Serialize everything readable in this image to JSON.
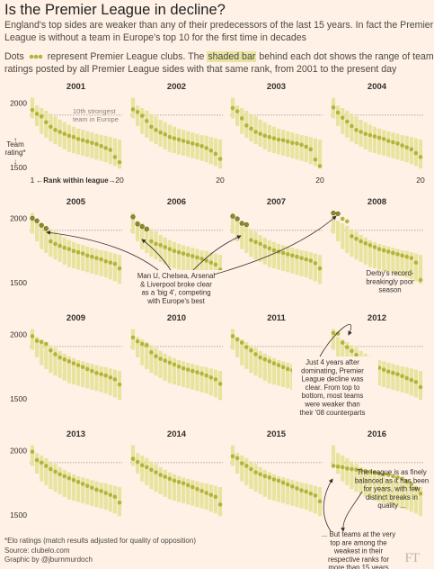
{
  "title": "Is the Premier League in decline?",
  "subtitle_line1": "England's top sides are weaker than any of their predecessors of the last 15 years. In fact the Premier",
  "subtitle_line2": "League is without a team in Europe's top 10 for the first time in decades",
  "note": {
    "prefix": "Dots",
    "middle": "represent Premier League clubs. The",
    "highlight": "shaded bar",
    "suffix_line1": "behind each dot shows the range of team",
    "line2": "ratings posted by all Premier League sides with that same rank, from 2001 to the present day"
  },
  "footer": {
    "line1": "*Elo ratings (match results adjusted for quality of opposition)",
    "line2": "Source: clubelo.com",
    "line3": "Graphic by @jburnmurdoch"
  },
  "logo": "FT",
  "colors": {
    "dot": "#b5b33a",
    "dot_highlight": "#8c8a2e",
    "bar": "#e8e4a0",
    "reference_line": "#9a928a",
    "text": "#33302e"
  },
  "chart_data": {
    "type": "scatter",
    "subtype": "small multiples, dot over range bar",
    "xlabel": "Rank within league",
    "ylabel": "Team rating*",
    "x_ticks": [
      "1",
      "20"
    ],
    "y_ticks": [
      "2000",
      "1500"
    ],
    "ylim": [
      1450,
      2100
    ],
    "xlim": [
      1,
      20
    ],
    "reference_line": {
      "label": "10th strongest team in Europe",
      "value": 1905
    },
    "range_bar": {
      "rank": [
        1,
        2,
        3,
        4,
        5,
        6,
        7,
        8,
        9,
        10,
        11,
        12,
        13,
        14,
        15,
        16,
        17,
        18,
        19,
        20
      ],
      "low": [
        1880,
        1820,
        1760,
        1730,
        1700,
        1680,
        1660,
        1640,
        1620,
        1610,
        1600,
        1590,
        1580,
        1570,
        1560,
        1550,
        1540,
        1525,
        1510,
        1490
      ],
      "high": [
        2040,
        1980,
        1960,
        1940,
        1915,
        1895,
        1870,
        1850,
        1830,
        1815,
        1800,
        1790,
        1780,
        1770,
        1760,
        1750,
        1745,
        1735,
        1725,
        1715
      ]
    },
    "panels": [
      {
        "year": "2001",
        "values": [
          1945,
          1915,
          1895,
          1850,
          1815,
          1790,
          1775,
          1760,
          1745,
          1735,
          1720,
          1710,
          1700,
          1690,
          1680,
          1665,
          1650,
          1635,
          1580,
          1540
        ]
      },
      {
        "year": "2002",
        "values": [
          1950,
          1930,
          1900,
          1860,
          1815,
          1790,
          1770,
          1755,
          1735,
          1725,
          1715,
          1705,
          1695,
          1685,
          1675,
          1665,
          1650,
          1630,
          1605,
          1565
        ]
      },
      {
        "year": "2003",
        "values": [
          1960,
          1935,
          1880,
          1825,
          1800,
          1775,
          1760,
          1745,
          1735,
          1725,
          1715,
          1710,
          1700,
          1690,
          1685,
          1675,
          1660,
          1640,
          1560,
          1510
        ]
      },
      {
        "year": "2004",
        "values": [
          1965,
          1925,
          1885,
          1855,
          1820,
          1790,
          1775,
          1760,
          1750,
          1740,
          1730,
          1720,
          1705,
          1695,
          1685,
          1670,
          1655,
          1640,
          1610,
          1580
        ]
      },
      {
        "year": "2005",
        "values": [
          2000,
          1980,
          1945,
          1920,
          1820,
          1800,
          1785,
          1770,
          1760,
          1745,
          1735,
          1725,
          1710,
          1700,
          1690,
          1680,
          1665,
          1655,
          1645,
          1610
        ]
      },
      {
        "year": "2006",
        "values": [
          2010,
          1955,
          1935,
          1915,
          1820,
          1800,
          1790,
          1775,
          1760,
          1745,
          1735,
          1725,
          1715,
          1705,
          1695,
          1685,
          1670,
          1655,
          1640,
          1600
        ]
      },
      {
        "year": "2007",
        "values": [
          2015,
          1995,
          1960,
          1950,
          1830,
          1815,
          1800,
          1780,
          1765,
          1750,
          1740,
          1730,
          1720,
          1710,
          1700,
          1690,
          1680,
          1670,
          1650,
          1610
        ]
      },
      {
        "year": "2008",
        "values": [
          2040,
          2035,
          1995,
          1975,
          1860,
          1840,
          1820,
          1805,
          1790,
          1775,
          1760,
          1750,
          1740,
          1730,
          1720,
          1710,
          1700,
          1690,
          1655,
          1520
        ]
      },
      {
        "year": "2009",
        "values": [
          1985,
          1950,
          1940,
          1925,
          1875,
          1845,
          1820,
          1805,
          1790,
          1775,
          1760,
          1745,
          1730,
          1715,
          1700,
          1690,
          1680,
          1665,
          1650,
          1610
        ]
      },
      {
        "year": "2010",
        "values": [
          1975,
          1945,
          1925,
          1915,
          1860,
          1830,
          1810,
          1795,
          1780,
          1765,
          1750,
          1735,
          1725,
          1715,
          1705,
          1695,
          1680,
          1665,
          1650,
          1615
        ]
      },
      {
        "year": "2011",
        "values": [
          1985,
          1960,
          1935,
          1900,
          1875,
          1845,
          1820,
          1805,
          1790,
          1775,
          1760,
          1745,
          1730,
          1720,
          1710,
          1700,
          1690,
          1675,
          1660,
          1635
        ]
      },
      {
        "year": "2012",
        "values": [
          2010,
          2005,
          1935,
          1900,
          1870,
          1840,
          1810,
          1790,
          1770,
          1755,
          1740,
          1725,
          1710,
          1700,
          1690,
          1675,
          1660,
          1645,
          1630,
          1590
        ]
      },
      {
        "year": "2013",
        "values": [
          1990,
          1925,
          1905,
          1880,
          1855,
          1835,
          1815,
          1800,
          1785,
          1770,
          1755,
          1740,
          1725,
          1710,
          1695,
          1685,
          1670,
          1655,
          1640,
          1595
        ]
      },
      {
        "year": "2014",
        "values": [
          1935,
          1910,
          1885,
          1870,
          1850,
          1830,
          1810,
          1795,
          1780,
          1765,
          1755,
          1745,
          1730,
          1715,
          1700,
          1685,
          1670,
          1655,
          1640,
          1580
        ]
      },
      {
        "year": "2015",
        "values": [
          1955,
          1940,
          1900,
          1880,
          1855,
          1830,
          1815,
          1800,
          1790,
          1775,
          1765,
          1750,
          1735,
          1720,
          1705,
          1690,
          1680,
          1665,
          1650,
          1605
        ]
      },
      {
        "year": "2016",
        "values": [
          1880,
          1875,
          1870,
          1860,
          1855,
          1850,
          1845,
          1840,
          1835,
          1830,
          1820,
          1815,
          1810,
          1800,
          1790,
          1780,
          1760,
          1740,
          1705,
          1665
        ]
      }
    ],
    "annotations": [
      {
        "panel": "2005",
        "lines": [
          "Man U, Chelsea, Arsenal",
          "& Liverpool broke clear",
          "as a 'big 4', competing",
          "with Europe's best"
        ]
      },
      {
        "panel": "2008",
        "lines": [
          "Derby's record-",
          "breakingly poor",
          "season"
        ]
      },
      {
        "panel": "2012",
        "lines": [
          "Just 4 years after",
          "dominating, Premier",
          "League decline was",
          "clear. From top to",
          "bottom, most teams",
          "were weaker than",
          "their '08 counterparts"
        ]
      },
      {
        "panel": "2016",
        "lines": [
          "The league is as finely",
          "balanced as it has been",
          "for years, with few",
          "distinct breaks in",
          "quality ..."
        ]
      },
      {
        "panel": "2016",
        "lines": [
          "... But teams at the very",
          "top are among the",
          "weakest in their",
          "respective ranks for",
          "more than 15 years"
        ]
      }
    ]
  }
}
